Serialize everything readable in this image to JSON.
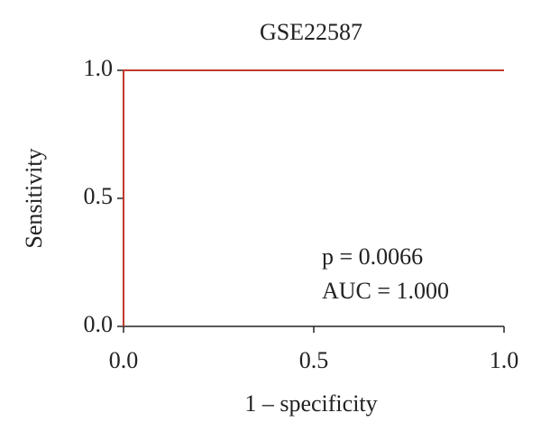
{
  "chart_data": {
    "type": "line",
    "title": "GSE22587",
    "x_label": "1 – specificity",
    "y_label": "Sensitivity",
    "x": [
      0,
      0,
      1
    ],
    "values": [
      0,
      1,
      1
    ],
    "color": "#c0392b",
    "xlim": [
      0,
      1
    ],
    "ylim": [
      0,
      1
    ],
    "xticks": [
      {
        "value": 0,
        "label": "0.0"
      },
      {
        "value": 0.5,
        "label": "0.5"
      },
      {
        "value": 1,
        "label": "1.0"
      }
    ],
    "yticks": [
      {
        "value": 0,
        "label": "0.0"
      },
      {
        "value": 0.5,
        "label": "0.5"
      },
      {
        "value": 1,
        "label": "1.0"
      }
    ],
    "annotations": [
      "p = 0.0066",
      "AUC = 1.000"
    ]
  }
}
